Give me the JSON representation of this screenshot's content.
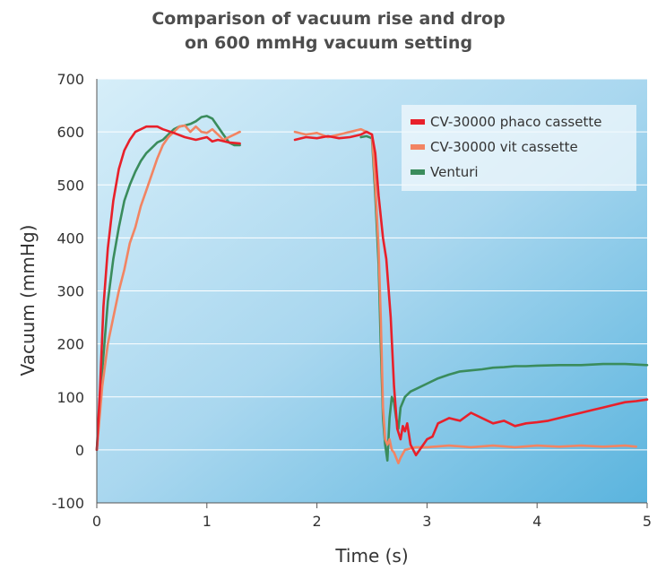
{
  "chart_data": {
    "type": "line",
    "title": [
      "Comparison of vacuum rise and drop",
      "on 600 mmHg vacuum setting"
    ],
    "xlabel": "Time (s)",
    "ylabel": "Vacuum (mmHg)",
    "xlim": [
      0,
      5
    ],
    "ylim": [
      -100,
      700
    ],
    "xticks": [
      "0",
      "1",
      "2",
      "3",
      "4",
      "5"
    ],
    "yticks": [
      "-100",
      "0",
      "100",
      "200",
      "300",
      "400",
      "500",
      "600",
      "700"
    ],
    "grid": "horizontal",
    "legend_position": "top-right",
    "background": "gradient light-to-medium blue",
    "series": [
      {
        "name": "CV-30000 phaco cassette",
        "color": "#e8202a",
        "segments": [
          [
            [
              0,
              0
            ],
            [
              0.03,
              120
            ],
            [
              0.06,
              270
            ],
            [
              0.1,
              380
            ],
            [
              0.15,
              470
            ],
            [
              0.2,
              530
            ],
            [
              0.25,
              565
            ],
            [
              0.3,
              585
            ],
            [
              0.35,
              600
            ],
            [
              0.4,
              605
            ],
            [
              0.45,
              610
            ],
            [
              0.55,
              610
            ],
            [
              0.6,
              605
            ],
            [
              0.7,
              598
            ],
            [
              0.8,
              590
            ],
            [
              0.9,
              585
            ],
            [
              1.0,
              590
            ],
            [
              1.05,
              582
            ],
            [
              1.1,
              585
            ],
            [
              1.2,
              580
            ],
            [
              1.3,
              578
            ]
          ],
          [
            [
              1.8,
              585
            ],
            [
              1.9,
              590
            ],
            [
              2.0,
              588
            ],
            [
              2.1,
              592
            ],
            [
              2.2,
              588
            ],
            [
              2.3,
              590
            ],
            [
              2.4,
              595
            ],
            [
              2.45,
              600
            ],
            [
              2.5,
              595
            ],
            [
              2.53,
              560
            ],
            [
              2.56,
              480
            ],
            [
              2.6,
              400
            ],
            [
              2.63,
              360
            ],
            [
              2.67,
              250
            ],
            [
              2.7,
              120
            ],
            [
              2.73,
              40
            ],
            [
              2.76,
              20
            ],
            [
              2.78,
              45
            ],
            [
              2.8,
              35
            ],
            [
              2.82,
              50
            ],
            [
              2.85,
              10
            ],
            [
              2.9,
              -10
            ],
            [
              2.95,
              5
            ],
            [
              3.0,
              20
            ],
            [
              3.05,
              25
            ],
            [
              3.1,
              50
            ],
            [
              3.2,
              60
            ],
            [
              3.3,
              55
            ],
            [
              3.4,
              70
            ],
            [
              3.5,
              60
            ],
            [
              3.6,
              50
            ],
            [
              3.7,
              55
            ],
            [
              3.8,
              45
            ],
            [
              3.9,
              50
            ],
            [
              4.0,
              52
            ],
            [
              4.1,
              55
            ],
            [
              4.2,
              60
            ],
            [
              4.3,
              65
            ],
            [
              4.4,
              70
            ],
            [
              4.5,
              75
            ],
            [
              4.6,
              80
            ],
            [
              4.7,
              85
            ],
            [
              4.8,
              90
            ],
            [
              4.9,
              92
            ],
            [
              5.0,
              95
            ]
          ]
        ]
      },
      {
        "name": "CV-30000 vit cassette",
        "color": "#f28462",
        "segments": [
          [
            [
              0,
              0
            ],
            [
              0.05,
              120
            ],
            [
              0.1,
              200
            ],
            [
              0.15,
              250
            ],
            [
              0.2,
              300
            ],
            [
              0.25,
              340
            ],
            [
              0.3,
              390
            ],
            [
              0.35,
              420
            ],
            [
              0.4,
              460
            ],
            [
              0.45,
              490
            ],
            [
              0.5,
              520
            ],
            [
              0.55,
              550
            ],
            [
              0.6,
              575
            ],
            [
              0.65,
              590
            ],
            [
              0.7,
              600
            ],
            [
              0.75,
              610
            ],
            [
              0.8,
              612
            ],
            [
              0.85,
              600
            ],
            [
              0.9,
              610
            ],
            [
              0.95,
              600
            ],
            [
              1.0,
              598
            ],
            [
              1.05,
              605
            ],
            [
              1.1,
              595
            ],
            [
              1.15,
              585
            ],
            [
              1.2,
              590
            ],
            [
              1.25,
              595
            ],
            [
              1.3,
              600
            ]
          ],
          [
            [
              1.8,
              600
            ],
            [
              1.9,
              595
            ],
            [
              2.0,
              598
            ],
            [
              2.1,
              590
            ],
            [
              2.2,
              595
            ],
            [
              2.3,
              600
            ],
            [
              2.4,
              605
            ],
            [
              2.45,
              600
            ],
            [
              2.5,
              595
            ],
            [
              2.53,
              500
            ],
            [
              2.56,
              380
            ],
            [
              2.58,
              250
            ],
            [
              2.6,
              80
            ],
            [
              2.62,
              20
            ],
            [
              2.64,
              10
            ],
            [
              2.66,
              20
            ],
            [
              2.68,
              0
            ],
            [
              2.7,
              -5
            ],
            [
              2.72,
              -15
            ],
            [
              2.74,
              -25
            ],
            [
              2.76,
              -15
            ],
            [
              2.8,
              0
            ],
            [
              2.9,
              5
            ],
            [
              3.0,
              5
            ],
            [
              3.2,
              8
            ],
            [
              3.4,
              5
            ],
            [
              3.6,
              8
            ],
            [
              3.8,
              5
            ],
            [
              4.0,
              8
            ],
            [
              4.2,
              6
            ],
            [
              4.4,
              8
            ],
            [
              4.6,
              6
            ],
            [
              4.8,
              8
            ],
            [
              4.9,
              6
            ]
          ]
        ]
      },
      {
        "name": "Venturi",
        "color": "#3a8c5c",
        "segments": [
          [
            [
              0,
              0
            ],
            [
              0.05,
              150
            ],
            [
              0.1,
              280
            ],
            [
              0.15,
              360
            ],
            [
              0.2,
              420
            ],
            [
              0.25,
              470
            ],
            [
              0.3,
              500
            ],
            [
              0.35,
              525
            ],
            [
              0.4,
              545
            ],
            [
              0.45,
              560
            ],
            [
              0.5,
              570
            ],
            [
              0.55,
              580
            ],
            [
              0.6,
              585
            ],
            [
              0.65,
              595
            ],
            [
              0.7,
              605
            ],
            [
              0.75,
              610
            ],
            [
              0.8,
              612
            ],
            [
              0.85,
              615
            ],
            [
              0.9,
              620
            ],
            [
              0.95,
              628
            ],
            [
              1.0,
              630
            ],
            [
              1.05,
              625
            ],
            [
              1.1,
              610
            ],
            [
              1.15,
              595
            ],
            [
              1.2,
              580
            ],
            [
              1.25,
              575
            ],
            [
              1.3,
              575
            ]
          ],
          [
            [
              2.4,
              590
            ],
            [
              2.45,
              592
            ],
            [
              2.5,
              588
            ],
            [
              2.53,
              480
            ],
            [
              2.56,
              350
            ],
            [
              2.58,
              200
            ],
            [
              2.6,
              60
            ],
            [
              2.62,
              10
            ],
            [
              2.64,
              -20
            ],
            [
              2.66,
              60
            ],
            [
              2.68,
              100
            ],
            [
              2.7,
              90
            ],
            [
              2.72,
              60
            ],
            [
              2.74,
              40
            ],
            [
              2.76,
              80
            ],
            [
              2.8,
              100
            ],
            [
              2.85,
              110
            ],
            [
              2.9,
              115
            ],
            [
              3.0,
              125
            ],
            [
              3.1,
              135
            ],
            [
              3.2,
              142
            ],
            [
              3.3,
              148
            ],
            [
              3.4,
              150
            ],
            [
              3.5,
              152
            ],
            [
              3.6,
              155
            ],
            [
              3.7,
              156
            ],
            [
              3.8,
              158
            ],
            [
              3.9,
              158
            ],
            [
              4.0,
              159
            ],
            [
              4.2,
              160
            ],
            [
              4.4,
              160
            ],
            [
              4.6,
              162
            ],
            [
              4.8,
              162
            ],
            [
              5.0,
              160
            ]
          ]
        ]
      }
    ]
  }
}
